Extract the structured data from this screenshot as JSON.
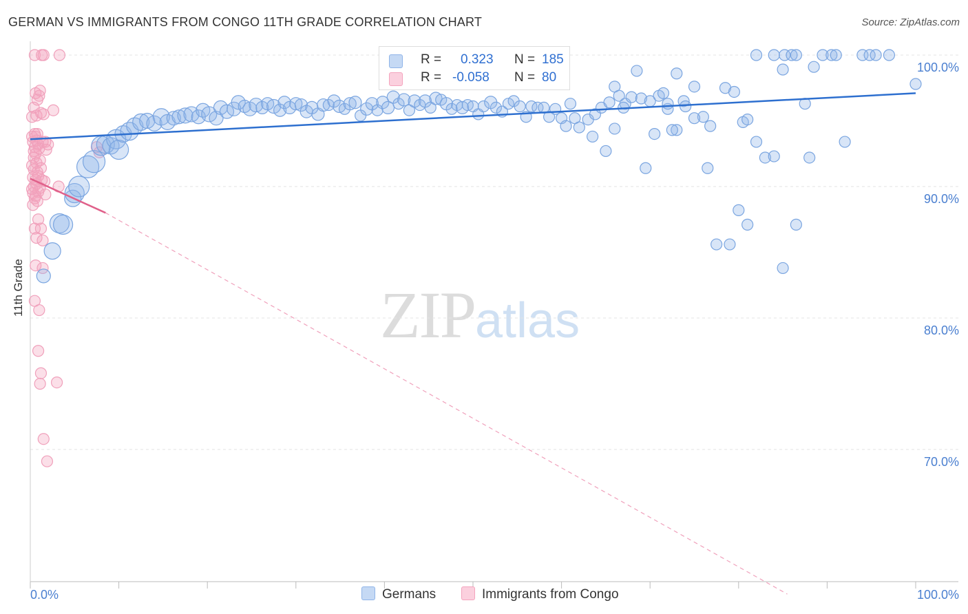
{
  "title": "GERMAN VS IMMIGRANTS FROM CONGO 11TH GRADE CORRELATION CHART",
  "source": "Source: ZipAtlas.com",
  "watermark": {
    "zip": "ZIP",
    "atlas": "atlas"
  },
  "colors": {
    "germans": "#8fb4e8",
    "germans_line": "#2d6fcf",
    "congo": "#f4a3bd",
    "congo_line": "#e0608a",
    "tick_text": "#4a7fd0"
  },
  "legend": {
    "rows": [
      {
        "r_label": "R =",
        "r_value": "0.323",
        "n_label": "N =",
        "n_value": "185"
      },
      {
        "r_label": "R =",
        "r_value": "-0.058",
        "n_label": "N =",
        "n_value": "80"
      }
    ]
  },
  "bottom_legend": [
    "Germans",
    "Immigrants from Congo"
  ],
  "chart_data": {
    "type": "scatter",
    "title": "GERMAN VS IMMIGRANTS FROM CONGO 11TH GRADE CORRELATION CHART",
    "ylabel": "11th Grade",
    "xlabel": "",
    "xlim": [
      0,
      100
    ],
    "ylim": [
      60,
      100
    ],
    "x_tick_labels": [
      "0.0%",
      "100.0%"
    ],
    "y_ticks": [
      {
        "value": 100,
        "label": "100.0%"
      },
      {
        "value": 90,
        "label": "90.0%"
      },
      {
        "value": 80,
        "label": "80.0%"
      },
      {
        "value": 70,
        "label": "70.0%"
      }
    ],
    "grid": true,
    "legend_position": "top-center",
    "series": [
      {
        "name": "Germans",
        "r": 0.323,
        "n": 185,
        "trend": {
          "x": [
            0,
            100
          ],
          "y": [
            93.6,
            97.1
          ]
        },
        "points": [
          [
            1.5,
            83.2,
            10
          ],
          [
            2.5,
            85.1,
            12
          ],
          [
            3.3,
            87.2,
            14
          ],
          [
            3.7,
            87.1,
            14
          ],
          [
            4.8,
            89.1,
            12
          ],
          [
            5.0,
            89.5,
            14
          ],
          [
            5.5,
            90.0,
            15
          ],
          [
            6.5,
            91.5,
            16
          ],
          [
            7.2,
            91.9,
            16
          ],
          [
            8.0,
            93.1,
            14
          ],
          [
            8.5,
            93.2,
            13
          ],
          [
            9.1,
            93.1,
            12
          ],
          [
            9.7,
            93.6,
            14
          ],
          [
            10.0,
            92.8,
            14
          ],
          [
            10.5,
            94.0,
            12
          ],
          [
            11.2,
            94.2,
            13
          ],
          [
            11.8,
            94.6,
            12
          ],
          [
            12.5,
            94.9,
            12
          ],
          [
            13.2,
            95.0,
            11
          ],
          [
            14.0,
            94.8,
            11
          ],
          [
            14.8,
            95.3,
            12
          ],
          [
            15.5,
            94.9,
            11
          ],
          [
            16.2,
            95.2,
            10
          ],
          [
            16.8,
            95.3,
            10
          ],
          [
            17.5,
            95.4,
            11
          ],
          [
            18.2,
            95.5,
            11
          ],
          [
            19.0,
            95.3,
            10
          ],
          [
            19.5,
            95.8,
            10
          ],
          [
            20.2,
            95.5,
            11
          ],
          [
            21.0,
            95.2,
            10
          ],
          [
            21.5,
            96.0,
            10
          ],
          [
            22.2,
            95.7,
            10
          ],
          [
            23.0,
            95.9,
            10
          ],
          [
            23.5,
            96.4,
            10
          ],
          [
            24.2,
            96.1,
            9
          ],
          [
            24.8,
            95.9,
            10
          ],
          [
            25.5,
            96.2,
            10
          ],
          [
            26.2,
            96.0,
            9
          ],
          [
            26.8,
            96.3,
            9
          ],
          [
            27.5,
            96.1,
            10
          ],
          [
            28.2,
            95.8,
            9
          ],
          [
            28.7,
            96.4,
            9
          ],
          [
            29.3,
            96.0,
            9
          ],
          [
            30.0,
            96.3,
            9
          ],
          [
            30.6,
            96.2,
            9
          ],
          [
            31.2,
            95.7,
            9
          ],
          [
            31.8,
            96.0,
            9
          ],
          [
            32.5,
            95.5,
            9
          ],
          [
            33.1,
            96.2,
            9
          ],
          [
            33.7,
            96.2,
            8
          ],
          [
            34.3,
            96.5,
            9
          ],
          [
            34.9,
            96.1,
            9
          ],
          [
            35.5,
            95.9,
            8
          ],
          [
            36.1,
            96.3,
            9
          ],
          [
            36.7,
            96.4,
            9
          ],
          [
            37.3,
            95.4,
            8
          ],
          [
            38.0,
            95.9,
            9
          ],
          [
            38.6,
            96.3,
            9
          ],
          [
            39.2,
            95.8,
            8
          ],
          [
            39.8,
            96.4,
            9
          ],
          [
            40.4,
            96.0,
            9
          ],
          [
            41.0,
            96.8,
            9
          ],
          [
            41.6,
            96.3,
            8
          ],
          [
            42.2,
            96.6,
            9
          ],
          [
            42.8,
            95.8,
            8
          ],
          [
            43.4,
            96.5,
            9
          ],
          [
            44.0,
            96.2,
            8
          ],
          [
            44.6,
            96.5,
            9
          ],
          [
            45.2,
            96.0,
            8
          ],
          [
            45.8,
            96.7,
            9
          ],
          [
            46.4,
            96.6,
            8
          ],
          [
            47.0,
            96.3,
            9
          ],
          [
            47.6,
            95.9,
            8
          ],
          [
            48.2,
            96.2,
            8
          ],
          [
            48.8,
            96.0,
            9
          ],
          [
            49.4,
            96.2,
            8
          ],
          [
            50.0,
            96.1,
            8
          ],
          [
            50.6,
            95.5,
            8
          ],
          [
            51.2,
            96.1,
            8
          ],
          [
            52.0,
            96.4,
            9
          ],
          [
            52.6,
            96.0,
            8
          ],
          [
            53.3,
            95.7,
            8
          ],
          [
            54.0,
            96.3,
            8
          ],
          [
            54.6,
            96.5,
            8
          ],
          [
            55.3,
            96.1,
            8
          ],
          [
            56.0,
            95.3,
            8
          ],
          [
            56.6,
            96.1,
            8
          ],
          [
            57.3,
            96.0,
            8
          ],
          [
            58.0,
            96.0,
            8
          ],
          [
            58.6,
            95.3,
            8
          ],
          [
            59.3,
            95.9,
            8
          ],
          [
            60.0,
            95.2,
            8
          ],
          [
            61.0,
            96.3,
            8
          ],
          [
            61.5,
            95.2,
            8
          ],
          [
            62.0,
            94.5,
            8
          ],
          [
            63.0,
            95.1,
            8
          ],
          [
            63.8,
            95.5,
            8
          ],
          [
            64.5,
            96.0,
            8
          ],
          [
            65.4,
            96.4,
            8
          ],
          [
            66.0,
            97.6,
            8
          ],
          [
            66.5,
            96.9,
            8
          ],
          [
            67.2,
            96.3,
            8
          ],
          [
            67.9,
            96.8,
            8
          ],
          [
            68.5,
            98.8,
            8
          ],
          [
            69.0,
            96.7,
            8
          ],
          [
            70.0,
            96.5,
            8
          ],
          [
            71.0,
            96.9,
            8
          ],
          [
            72.0,
            95.9,
            8
          ],
          [
            73.0,
            98.6,
            8
          ],
          [
            73.8,
            96.5,
            8
          ],
          [
            75.0,
            97.6,
            8
          ],
          [
            76.0,
            95.3,
            8
          ],
          [
            76.8,
            94.6,
            8
          ],
          [
            78.5,
            97.5,
            8
          ],
          [
            79.5,
            97.2,
            8
          ],
          [
            80.5,
            94.9,
            8
          ],
          [
            81.0,
            95.1,
            8
          ],
          [
            82.0,
            100.0,
            8
          ],
          [
            83.0,
            92.2,
            8
          ],
          [
            84.0,
            100.0,
            8
          ],
          [
            85.0,
            98.9,
            8
          ],
          [
            85.2,
            100.0,
            8
          ],
          [
            86.0,
            100.0,
            8
          ],
          [
            86.5,
            100.0,
            8
          ],
          [
            87.5,
            96.3,
            8
          ],
          [
            88.5,
            99.1,
            8
          ],
          [
            89.5,
            100.0,
            8
          ],
          [
            90.5,
            100.0,
            8
          ],
          [
            91.0,
            100.0,
            8
          ],
          [
            94.0,
            100.0,
            8
          ],
          [
            94.8,
            100.0,
            8
          ],
          [
            95.5,
            100.0,
            8
          ],
          [
            97.0,
            100.0,
            8
          ],
          [
            100.0,
            97.8,
            8
          ],
          [
            92.0,
            93.4,
            8
          ],
          [
            88.0,
            92.2,
            8
          ],
          [
            86.5,
            87.1,
            8
          ],
          [
            85.0,
            83.8,
            8
          ],
          [
            84.0,
            92.3,
            8
          ],
          [
            82.0,
            93.4,
            8
          ],
          [
            81.0,
            87.1,
            8
          ],
          [
            80.0,
            88.2,
            8
          ],
          [
            79.0,
            85.6,
            8
          ],
          [
            77.5,
            85.6,
            8
          ],
          [
            76.5,
            91.4,
            8
          ],
          [
            75.0,
            95.2,
            8
          ],
          [
            73.0,
            94.3,
            8
          ],
          [
            72.5,
            94.3,
            8
          ],
          [
            70.5,
            94.0,
            8
          ],
          [
            69.5,
            91.4,
            8
          ],
          [
            67.0,
            96.0,
            8
          ],
          [
            66.0,
            94.4,
            8
          ],
          [
            65.0,
            92.7,
            8
          ],
          [
            63.5,
            93.8,
            8
          ],
          [
            60.5,
            94.6,
            8
          ],
          [
            72.0,
            96.3,
            8
          ],
          [
            74.0,
            96.1,
            8
          ],
          [
            71.5,
            97.1,
            8
          ]
        ]
      },
      {
        "name": "Immigrants from Congo",
        "r": -0.058,
        "n": 80,
        "trend": {
          "x": [
            0,
            8.5
          ],
          "y": [
            90.6,
            88.0
          ],
          "dashed_extension": {
            "x": [
              8.5,
              85.5
            ],
            "y": [
              88.0,
              59.0
            ]
          }
        },
        "points": [
          [
            0.5,
            100.0
          ],
          [
            1.3,
            100.0
          ],
          [
            1.5,
            100.0
          ],
          [
            3.3,
            100.0
          ],
          [
            0.6,
            97.1
          ],
          [
            1.0,
            96.9
          ],
          [
            1.1,
            97.3
          ],
          [
            0.8,
            96.6
          ],
          [
            0.4,
            96.0
          ],
          [
            0.7,
            95.4
          ],
          [
            1.2,
            95.6
          ],
          [
            1.5,
            95.5
          ],
          [
            2.6,
            95.8
          ],
          [
            0.5,
            94.0
          ],
          [
            0.6,
            93.8
          ],
          [
            0.8,
            94.0
          ],
          [
            0.3,
            93.4
          ],
          [
            0.5,
            93.0
          ],
          [
            0.7,
            93.5
          ],
          [
            0.9,
            93.2
          ],
          [
            1.4,
            93.4
          ],
          [
            1.7,
            93.4
          ],
          [
            0.4,
            92.7
          ],
          [
            0.6,
            92.5
          ],
          [
            1.0,
            92.9
          ],
          [
            1.8,
            92.8
          ],
          [
            0.4,
            92.2
          ],
          [
            0.7,
            91.8
          ],
          [
            1.1,
            92.0
          ],
          [
            0.4,
            91.3
          ],
          [
            0.8,
            91.1
          ],
          [
            1.2,
            91.4
          ],
          [
            0.3,
            90.7
          ],
          [
            0.6,
            90.5
          ],
          [
            0.9,
            90.8
          ],
          [
            1.3,
            90.5
          ],
          [
            0.4,
            90.0
          ],
          [
            0.7,
            90.2
          ],
          [
            1.1,
            89.9
          ],
          [
            0.3,
            89.5
          ],
          [
            0.6,
            89.3
          ],
          [
            0.9,
            89.6
          ],
          [
            1.7,
            89.4
          ],
          [
            0.5,
            89.1
          ],
          [
            0.8,
            88.9
          ],
          [
            3.2,
            90.0
          ],
          [
            0.9,
            87.5
          ],
          [
            0.5,
            86.8
          ],
          [
            1.2,
            86.8
          ],
          [
            0.7,
            86.1
          ],
          [
            1.4,
            85.9
          ],
          [
            0.6,
            84.0
          ],
          [
            1.4,
            83.8
          ],
          [
            0.5,
            81.3
          ],
          [
            1.0,
            80.6
          ],
          [
            0.9,
            77.5
          ],
          [
            1.2,
            75.8
          ],
          [
            1.1,
            75.0
          ],
          [
            3.0,
            75.1
          ],
          [
            1.5,
            70.8
          ],
          [
            1.9,
            69.1
          ],
          [
            7.5,
            93.0
          ],
          [
            7.8,
            92.6
          ],
          [
            0.2,
            91.6
          ],
          [
            0.2,
            89.8
          ],
          [
            0.2,
            93.8
          ],
          [
            0.2,
            95.3
          ],
          [
            0.3,
            88.6
          ],
          [
            1.6,
            90.4
          ],
          [
            2.0,
            93.2
          ]
        ]
      }
    ]
  }
}
